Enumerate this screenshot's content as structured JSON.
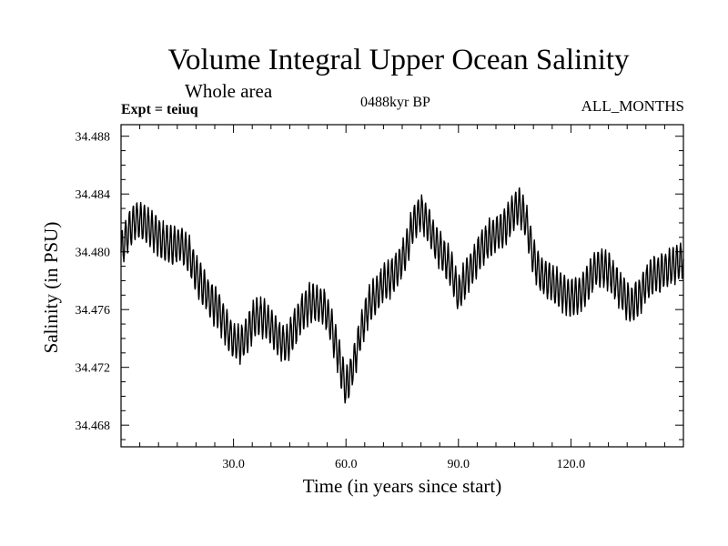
{
  "chart_data": {
    "type": "line",
    "title": "Volume Integral Upper Ocean Salinity",
    "subtitle": "Whole area",
    "experiment_label": "Expt = teiuq",
    "period_label": "0488kyr BP",
    "months_label": "ALL_MONTHS",
    "xlabel": "Time (in years since start)",
    "ylabel": "Salinity (in PSU)",
    "xlim": [
      0,
      150
    ],
    "ylim": [
      34.4665,
      34.4888
    ],
    "x_ticks": [
      "30.0",
      "60.0",
      "90.0",
      "120.0"
    ],
    "y_ticks": [
      "34.468",
      "34.472",
      "34.476",
      "34.480",
      "34.484",
      "34.488"
    ],
    "series": [
      {
        "name": "Salinity",
        "x": [
          0,
          2,
          4,
          6,
          8,
          10,
          12,
          14,
          16,
          18,
          20,
          22,
          24,
          26,
          28,
          30,
          32,
          34,
          36,
          38,
          40,
          42,
          44,
          46,
          48,
          50,
          52,
          54,
          56,
          58,
          60,
          62,
          64,
          66,
          68,
          70,
          72,
          74,
          76,
          78,
          80,
          82,
          84,
          86,
          88,
          90,
          92,
          94,
          96,
          98,
          100,
          102,
          104,
          106,
          108,
          110,
          112,
          114,
          116,
          118,
          120,
          122,
          124,
          126,
          128,
          130,
          132,
          134,
          136,
          138,
          140,
          142,
          144,
          146,
          148,
          150
        ],
        "values": [
          34.48,
          34.4815,
          34.4822,
          34.482,
          34.4816,
          34.481,
          34.4806,
          34.4804,
          34.4806,
          34.4798,
          34.4786,
          34.4775,
          34.4766,
          34.476,
          34.4748,
          34.4738,
          34.4736,
          34.4745,
          34.4756,
          34.4754,
          34.4748,
          34.474,
          34.4735,
          34.4746,
          34.4757,
          34.4764,
          34.4765,
          34.4762,
          34.475,
          34.4728,
          34.4705,
          34.4722,
          34.4745,
          34.4762,
          34.477,
          34.4778,
          34.4782,
          34.479,
          34.48,
          34.482,
          34.4828,
          34.4818,
          34.4806,
          34.4797,
          34.4788,
          34.477,
          34.4782,
          34.4792,
          34.4802,
          34.4808,
          34.4812,
          34.4816,
          34.4825,
          34.4832,
          34.4822,
          34.4796,
          34.4784,
          34.478,
          34.4776,
          34.4772,
          34.4768,
          34.477,
          34.4776,
          34.4786,
          34.479,
          34.4787,
          34.4778,
          34.477,
          34.4762,
          34.4768,
          34.4778,
          34.4784,
          34.4786,
          34.4788,
          34.4792,
          34.4795
        ]
      }
    ]
  }
}
